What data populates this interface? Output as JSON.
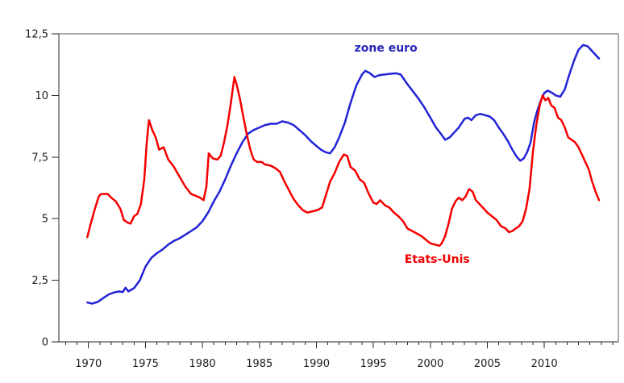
{
  "chart_data": {
    "type": "line",
    "title": "",
    "xlabel": "",
    "ylabel": "",
    "grid": false,
    "legend": "inline-annotations",
    "locale_decimal": "comma",
    "x_axis": {
      "range": [
        1967.4,
        2016.5
      ],
      "major_ticks": [
        1970,
        1975,
        1980,
        1985,
        1990,
        1995,
        2000,
        2005,
        2010
      ],
      "major_tick_labels": [
        "1970",
        "1975",
        "1980",
        "1985",
        "1990",
        "1995",
        "2000",
        "2005",
        "2010"
      ],
      "minor_tick_step": 1,
      "minor_tick_start": 1968,
      "minor_tick_end": 2016
    },
    "y_axis": {
      "range": [
        0,
        12.5
      ],
      "ticks": [
        {
          "value": 0,
          "label": "0"
        },
        {
          "value": 2.5,
          "label": "2,5"
        },
        {
          "value": 5,
          "label": "5"
        },
        {
          "value": 7.5,
          "label": "7,5"
        },
        {
          "value": 10,
          "label": "10"
        },
        {
          "value": 12.5,
          "label": "12,5"
        }
      ]
    },
    "series": [
      {
        "name": "zone euro",
        "color": "#2323d7",
        "label_color": "#2525b8",
        "label_anchor": [
          1996.1,
          11.78
        ],
        "points": [
          [
            1969.9,
            1.6
          ],
          [
            1970.3,
            1.55
          ],
          [
            1970.8,
            1.62
          ],
          [
            1971.3,
            1.78
          ],
          [
            1971.8,
            1.93
          ],
          [
            1972.2,
            2.0
          ],
          [
            1972.7,
            2.05
          ],
          [
            1973.0,
            2.02
          ],
          [
            1973.25,
            2.2
          ],
          [
            1973.5,
            2.05
          ],
          [
            1974.0,
            2.18
          ],
          [
            1974.5,
            2.5
          ],
          [
            1975.0,
            3.05
          ],
          [
            1975.5,
            3.4
          ],
          [
            1976.0,
            3.6
          ],
          [
            1976.5,
            3.75
          ],
          [
            1977.0,
            3.95
          ],
          [
            1977.5,
            4.1
          ],
          [
            1978.0,
            4.2
          ],
          [
            1978.5,
            4.35
          ],
          [
            1979.0,
            4.5
          ],
          [
            1979.5,
            4.65
          ],
          [
            1980.0,
            4.9
          ],
          [
            1980.5,
            5.25
          ],
          [
            1981.0,
            5.7
          ],
          [
            1981.5,
            6.1
          ],
          [
            1982.0,
            6.6
          ],
          [
            1982.5,
            7.15
          ],
          [
            1983.0,
            7.65
          ],
          [
            1983.5,
            8.1
          ],
          [
            1984.0,
            8.45
          ],
          [
            1984.5,
            8.6
          ],
          [
            1985.0,
            8.7
          ],
          [
            1985.5,
            8.8
          ],
          [
            1986.0,
            8.85
          ],
          [
            1986.5,
            8.85
          ],
          [
            1987.0,
            8.95
          ],
          [
            1987.5,
            8.9
          ],
          [
            1988.0,
            8.8
          ],
          [
            1988.5,
            8.6
          ],
          [
            1989.0,
            8.4
          ],
          [
            1989.5,
            8.15
          ],
          [
            1990.0,
            7.95
          ],
          [
            1990.4,
            7.8
          ],
          [
            1990.8,
            7.7
          ],
          [
            1991.2,
            7.65
          ],
          [
            1991.6,
            7.9
          ],
          [
            1992.0,
            8.3
          ],
          [
            1992.5,
            8.9
          ],
          [
            1993.0,
            9.7
          ],
          [
            1993.5,
            10.4
          ],
          [
            1994.0,
            10.85
          ],
          [
            1994.3,
            11.0
          ],
          [
            1994.7,
            10.9
          ],
          [
            1995.1,
            10.75
          ],
          [
            1995.5,
            10.82
          ],
          [
            1996.0,
            10.85
          ],
          [
            1996.5,
            10.88
          ],
          [
            1997.0,
            10.9
          ],
          [
            1997.4,
            10.85
          ],
          [
            1998.0,
            10.45
          ],
          [
            1998.5,
            10.15
          ],
          [
            1999.0,
            9.85
          ],
          [
            1999.5,
            9.5
          ],
          [
            2000.0,
            9.1
          ],
          [
            2000.5,
            8.7
          ],
          [
            2001.0,
            8.4
          ],
          [
            2001.3,
            8.2
          ],
          [
            2001.7,
            8.3
          ],
          [
            2002.1,
            8.5
          ],
          [
            2002.5,
            8.7
          ],
          [
            2003.0,
            9.05
          ],
          [
            2003.3,
            9.1
          ],
          [
            2003.6,
            9.0
          ],
          [
            2004.0,
            9.2
          ],
          [
            2004.4,
            9.25
          ],
          [
            2004.8,
            9.2
          ],
          [
            2005.2,
            9.15
          ],
          [
            2005.6,
            9.0
          ],
          [
            2006.0,
            8.7
          ],
          [
            2006.4,
            8.45
          ],
          [
            2006.8,
            8.15
          ],
          [
            2007.2,
            7.8
          ],
          [
            2007.6,
            7.5
          ],
          [
            2007.9,
            7.35
          ],
          [
            2008.2,
            7.45
          ],
          [
            2008.5,
            7.7
          ],
          [
            2008.8,
            8.1
          ],
          [
            2009.1,
            8.9
          ],
          [
            2009.4,
            9.4
          ],
          [
            2009.7,
            9.8
          ],
          [
            2010.0,
            10.1
          ],
          [
            2010.3,
            10.2
          ],
          [
            2010.7,
            10.1
          ],
          [
            2011.0,
            10.0
          ],
          [
            2011.4,
            9.95
          ],
          [
            2011.8,
            10.25
          ],
          [
            2012.2,
            10.85
          ],
          [
            2012.6,
            11.4
          ],
          [
            2013.0,
            11.85
          ],
          [
            2013.4,
            12.05
          ],
          [
            2013.8,
            12.0
          ],
          [
            2014.1,
            11.85
          ],
          [
            2014.5,
            11.65
          ],
          [
            2014.8,
            11.5
          ]
        ]
      },
      {
        "name": "Etats-Unis",
        "color": "#f50000",
        "label_color": "#f20000",
        "label_anchor": [
          2000.6,
          3.21
        ],
        "points": [
          [
            1969.9,
            4.25
          ],
          [
            1970.2,
            4.8
          ],
          [
            1970.5,
            5.3
          ],
          [
            1970.9,
            5.9
          ],
          [
            1971.1,
            6.0
          ],
          [
            1971.7,
            6.0
          ],
          [
            1972.0,
            5.85
          ],
          [
            1972.4,
            5.7
          ],
          [
            1972.8,
            5.4
          ],
          [
            1973.1,
            4.95
          ],
          [
            1973.4,
            4.85
          ],
          [
            1973.7,
            4.8
          ],
          [
            1974.0,
            5.1
          ],
          [
            1974.3,
            5.2
          ],
          [
            1974.6,
            5.6
          ],
          [
            1974.9,
            6.6
          ],
          [
            1975.1,
            8.0
          ],
          [
            1975.3,
            9.0
          ],
          [
            1975.6,
            8.6
          ],
          [
            1975.9,
            8.3
          ],
          [
            1976.2,
            7.8
          ],
          [
            1976.6,
            7.9
          ],
          [
            1977.0,
            7.4
          ],
          [
            1977.5,
            7.1
          ],
          [
            1978.0,
            6.7
          ],
          [
            1978.5,
            6.3
          ],
          [
            1979.0,
            6.0
          ],
          [
            1979.3,
            5.95
          ],
          [
            1979.8,
            5.85
          ],
          [
            1980.1,
            5.75
          ],
          [
            1980.35,
            6.3
          ],
          [
            1980.55,
            7.65
          ],
          [
            1980.9,
            7.45
          ],
          [
            1981.3,
            7.4
          ],
          [
            1981.6,
            7.55
          ],
          [
            1981.9,
            8.1
          ],
          [
            1982.2,
            8.8
          ],
          [
            1982.5,
            9.7
          ],
          [
            1982.8,
            10.75
          ],
          [
            1983.0,
            10.45
          ],
          [
            1983.3,
            9.85
          ],
          [
            1983.6,
            9.1
          ],
          [
            1983.9,
            8.4
          ],
          [
            1984.2,
            7.8
          ],
          [
            1984.5,
            7.4
          ],
          [
            1984.8,
            7.3
          ],
          [
            1985.2,
            7.3
          ],
          [
            1985.5,
            7.2
          ],
          [
            1986.0,
            7.15
          ],
          [
            1986.4,
            7.05
          ],
          [
            1986.8,
            6.9
          ],
          [
            1987.2,
            6.5
          ],
          [
            1987.6,
            6.15
          ],
          [
            1988.0,
            5.8
          ],
          [
            1988.4,
            5.55
          ],
          [
            1988.8,
            5.35
          ],
          [
            1989.2,
            5.25
          ],
          [
            1989.7,
            5.3
          ],
          [
            1990.1,
            5.35
          ],
          [
            1990.5,
            5.45
          ],
          [
            1990.8,
            5.9
          ],
          [
            1991.2,
            6.5
          ],
          [
            1991.6,
            6.85
          ],
          [
            1992.0,
            7.3
          ],
          [
            1992.4,
            7.6
          ],
          [
            1992.7,
            7.55
          ],
          [
            1993.0,
            7.1
          ],
          [
            1993.4,
            6.95
          ],
          [
            1993.8,
            6.6
          ],
          [
            1994.2,
            6.45
          ],
          [
            1994.6,
            6.0
          ],
          [
            1995.0,
            5.65
          ],
          [
            1995.3,
            5.6
          ],
          [
            1995.6,
            5.75
          ],
          [
            1996.0,
            5.55
          ],
          [
            1996.4,
            5.45
          ],
          [
            1996.8,
            5.25
          ],
          [
            1997.2,
            5.1
          ],
          [
            1997.6,
            4.9
          ],
          [
            1998.0,
            4.6
          ],
          [
            1998.4,
            4.5
          ],
          [
            1998.8,
            4.4
          ],
          [
            1999.2,
            4.3
          ],
          [
            1999.6,
            4.15
          ],
          [
            2000.0,
            4.0
          ],
          [
            2000.4,
            3.95
          ],
          [
            2000.8,
            3.9
          ],
          [
            2001.0,
            4.0
          ],
          [
            2001.3,
            4.3
          ],
          [
            2001.6,
            4.8
          ],
          [
            2001.9,
            5.4
          ],
          [
            2002.2,
            5.7
          ],
          [
            2002.5,
            5.85
          ],
          [
            2002.8,
            5.75
          ],
          [
            2003.1,
            5.9
          ],
          [
            2003.4,
            6.2
          ],
          [
            2003.7,
            6.1
          ],
          [
            2004.0,
            5.75
          ],
          [
            2004.3,
            5.6
          ],
          [
            2004.6,
            5.45
          ],
          [
            2005.0,
            5.25
          ],
          [
            2005.4,
            5.1
          ],
          [
            2005.8,
            4.95
          ],
          [
            2006.2,
            4.7
          ],
          [
            2006.6,
            4.6
          ],
          [
            2006.9,
            4.45
          ],
          [
            2007.2,
            4.5
          ],
          [
            2007.5,
            4.6
          ],
          [
            2007.8,
            4.7
          ],
          [
            2008.1,
            4.9
          ],
          [
            2008.4,
            5.4
          ],
          [
            2008.7,
            6.2
          ],
          [
            2009.0,
            7.7
          ],
          [
            2009.3,
            8.8
          ],
          [
            2009.6,
            9.6
          ],
          [
            2009.85,
            10.0
          ],
          [
            2010.1,
            9.8
          ],
          [
            2010.35,
            9.9
          ],
          [
            2010.6,
            9.6
          ],
          [
            2010.9,
            9.5
          ],
          [
            2011.2,
            9.1
          ],
          [
            2011.5,
            9.0
          ],
          [
            2011.8,
            8.7
          ],
          [
            2012.1,
            8.3
          ],
          [
            2012.4,
            8.2
          ],
          [
            2012.7,
            8.1
          ],
          [
            2013.0,
            7.9
          ],
          [
            2013.3,
            7.6
          ],
          [
            2013.6,
            7.3
          ],
          [
            2013.9,
            7.0
          ],
          [
            2014.2,
            6.5
          ],
          [
            2014.5,
            6.1
          ],
          [
            2014.8,
            5.75
          ]
        ]
      }
    ]
  }
}
